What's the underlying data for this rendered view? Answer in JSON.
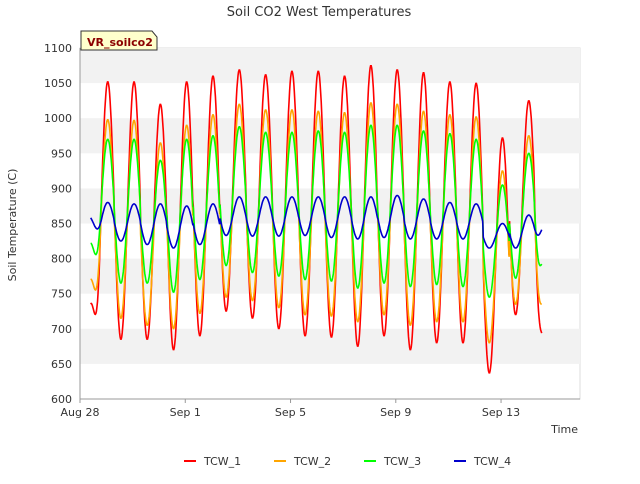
{
  "chart_data": {
    "type": "line",
    "title": "Soil CO2 West Temperatures",
    "xlabel": "Time",
    "ylabel": "Soil Temperature (C)",
    "ylim": [
      600,
      1100
    ],
    "yticks": [
      600,
      650,
      700,
      750,
      800,
      850,
      900,
      950,
      1000,
      1050,
      1100
    ],
    "xlim": [
      "2023-08-28",
      "2023-09-16"
    ],
    "xticks": [
      {
        "label": "Aug 28",
        "date": "2023-08-28"
      },
      {
        "label": "Sep 1",
        "date": "2023-09-01"
      },
      {
        "label": "Sep 5",
        "date": "2023-09-05"
      },
      {
        "label": "Sep 9",
        "date": "2023-09-09"
      },
      {
        "label": "Sep 13",
        "date": "2023-09-13"
      }
    ],
    "grid": "horizontal bands",
    "legend": "bottom",
    "site_label": "VR_soilco2",
    "x": [
      "2023-08-28",
      "2023-08-29",
      "2023-08-30",
      "2023-08-31",
      "2023-09-01",
      "2023-09-02",
      "2023-09-03",
      "2023-09-04",
      "2023-09-05",
      "2023-09-06",
      "2023-09-07",
      "2023-09-08",
      "2023-09-09",
      "2023-09-10",
      "2023-09-11",
      "2023-09-12",
      "2023-09-13",
      "2023-09-14",
      "2023-09-15"
    ],
    "series": [
      {
        "name": "TCW_1",
        "color": "#ff0000",
        "max": [
          1052,
          1052,
          1020,
          1052,
          1060,
          1069,
          1062,
          1067,
          1067,
          1060,
          1075,
          1069,
          1065,
          1052,
          1050,
          972,
          1025
        ],
        "min": [
          700,
          685,
          685,
          670,
          690,
          725,
          715,
          700,
          690,
          688,
          675,
          690,
          670,
          680,
          680,
          637,
          720
        ],
        "start": 735,
        "end": 693
      },
      {
        "name": "TCW_2",
        "color": "#ffa500",
        "max": [
          998,
          997,
          965,
          990,
          1005,
          1020,
          1012,
          1012,
          1010,
          1008,
          1022,
          1020,
          1010,
          1005,
          1002,
          925,
          975
        ],
        "min": [
          735,
          715,
          705,
          700,
          722,
          745,
          740,
          730,
          720,
          718,
          710,
          720,
          705,
          710,
          710,
          680,
          735
        ],
        "start": 770,
        "end": 735
      },
      {
        "name": "TCW_3",
        "color": "#00ff00",
        "max": [
          970,
          970,
          940,
          970,
          975,
          988,
          980,
          980,
          982,
          980,
          990,
          990,
          982,
          978,
          970,
          905,
          950
        ],
        "min": [
          785,
          765,
          765,
          752,
          770,
          790,
          780,
          775,
          770,
          768,
          758,
          765,
          760,
          763,
          760,
          745,
          772
        ],
        "start": 822,
        "end": 793
      },
      {
        "name": "TCW_4",
        "color": "#0000cc",
        "max": [
          880,
          878,
          878,
          875,
          878,
          888,
          888,
          888,
          888,
          888,
          888,
          890,
          885,
          880,
          878,
          850,
          862
        ],
        "min": [
          828,
          825,
          820,
          815,
          820,
          833,
          832,
          832,
          833,
          830,
          828,
          830,
          828,
          828,
          828,
          815,
          815
        ],
        "start": 858,
        "end": 842
      }
    ]
  }
}
